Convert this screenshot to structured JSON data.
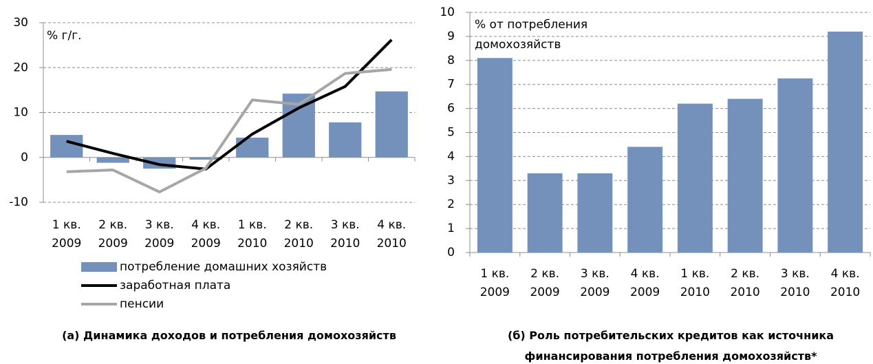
{
  "chart_data": [
    {
      "type": "bar_line",
      "categories": [
        "1 кв.\n2009",
        "2 кв.\n2009",
        "3 кв.\n2009",
        "4 кв.\n2009",
        "1 кв.\n2010",
        "2 кв.\n2010",
        "3 кв.\n2010",
        "4 кв.\n2010"
      ],
      "series": [
        {
          "name": "потребление домашних хозяйств",
          "kind": "bar",
          "color": "#7391bb",
          "values": [
            5.0,
            -1.2,
            -2.5,
            -0.5,
            4.4,
            14.2,
            7.8,
            14.7
          ]
        },
        {
          "name": "заработная плата",
          "kind": "line",
          "color": "#000000",
          "values": [
            3.6,
            0.9,
            -1.6,
            -2.6,
            5.2,
            11.0,
            15.8,
            26.2
          ]
        },
        {
          "name": "пенсии",
          "kind": "line",
          "color": "#a6a6a6",
          "values": [
            -3.2,
            -2.8,
            -7.7,
            -2.4,
            12.8,
            11.8,
            18.7,
            19.6
          ]
        }
      ],
      "annotation": "% г/г.",
      "caption": "(а) Динамика доходов и потребления домохозяйств",
      "ylim": [
        -10,
        30
      ],
      "yticks": [
        -10,
        0,
        10,
        20,
        30
      ],
      "grid": true
    },
    {
      "type": "bar",
      "categories": [
        "1 кв.\n2009",
        "2 кв.\n2009",
        "3 кв.\n2009",
        "4 кв.\n2009",
        "1 кв.\n2010",
        "2 кв.\n2010",
        "3 кв.\n2010",
        "4 кв.\n2010"
      ],
      "values": [
        8.1,
        3.3,
        3.3,
        4.4,
        6.2,
        6.4,
        7.25,
        9.2
      ],
      "color": "#7391bb",
      "annotation": "% от потребления\nдомохозяйств",
      "caption": "(б) Роль потребительских кредитов как источника\nфинансирования потребления домохозяйств*",
      "ylim": [
        0,
        10
      ],
      "yticks": [
        0,
        1,
        2,
        3,
        4,
        5,
        6,
        7,
        8,
        9,
        10
      ],
      "grid": true
    }
  ]
}
